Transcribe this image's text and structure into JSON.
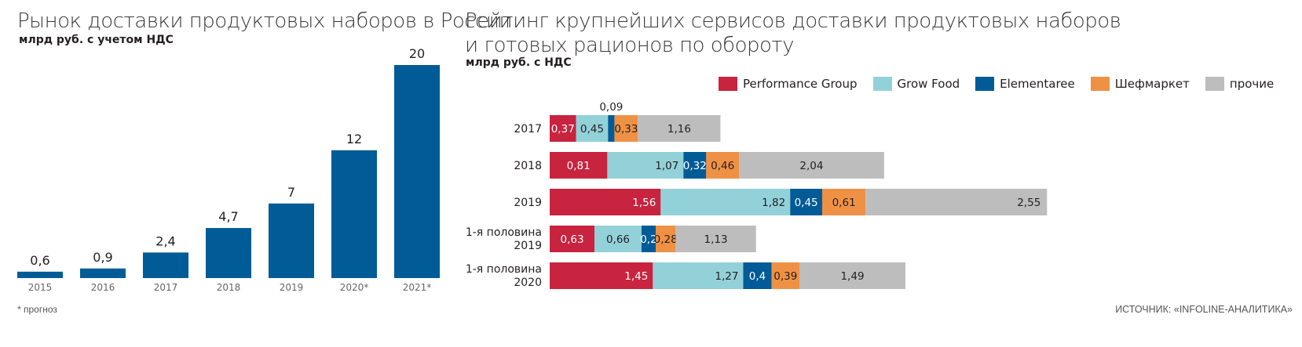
{
  "left": {
    "title": "Рынок доставки продуктовых наборов в России",
    "subtitle": "млрд руб. с учетом НДС",
    "footnote": "* прогноз"
  },
  "right": {
    "title_line1": "Рейтинг крупнейших сервисов доставки продуктовых наборов",
    "title_line2": "и готовых рационов по обороту",
    "subtitle": "млрд руб. с НДС",
    "source": "ИСТОЧНИК: «INFOLINE-АНАЛИТИКА»"
  },
  "colors": {
    "bar_blue": "#005b96",
    "performance": "#c8233f",
    "growfood": "#93d1d9",
    "elementaree": "#005b96",
    "shefmarket": "#ef9145",
    "other": "#bdbdbd"
  },
  "chart_data": [
    {
      "type": "bar",
      "title": "Рынок доставки продуктовых наборов в России",
      "ylabel": "млрд руб. с учетом НДС",
      "categories": [
        "2015",
        "2016",
        "2017",
        "2018",
        "2019",
        "2020*",
        "2021*"
      ],
      "values": [
        0.6,
        0.9,
        2.4,
        4.7,
        7,
        12,
        20
      ],
      "labels": [
        "0,6",
        "0,9",
        "2,4",
        "4,7",
        "7",
        "12",
        "20"
      ],
      "ylim": [
        0,
        20
      ]
    },
    {
      "type": "bar",
      "orientation": "horizontal",
      "stacked": true,
      "title": "Рейтинг крупнейших сервисов доставки продуктовых наборов и готовых рационов по обороту",
      "xlabel": "млрд руб. с НДС",
      "categories": [
        {
          "line1": "2017",
          "line2": ""
        },
        {
          "line1": "2018",
          "line2": ""
        },
        {
          "line1": "2019",
          "line2": ""
        },
        {
          "line1": "1-я половина",
          "line2": "2019"
        },
        {
          "line1": "1-я половина",
          "line2": "2020"
        }
      ],
      "series": [
        {
          "name": "Performance Group",
          "color_key": "performance",
          "values": [
            0.37,
            0.81,
            1.56,
            0.63,
            1.45
          ],
          "labels": [
            "0,37",
            "0,81",
            "1,56",
            "0,63",
            "1,45"
          ]
        },
        {
          "name": "Grow Food",
          "color_key": "growfood",
          "values": [
            0.45,
            1.07,
            1.82,
            0.66,
            1.27
          ],
          "labels": [
            "0,45",
            "1,07",
            "1,82",
            "0,66",
            "1,27"
          ]
        },
        {
          "name": "Elementaree",
          "color_key": "elementaree",
          "values": [
            0.09,
            0.32,
            0.45,
            0.2,
            0.4
          ],
          "labels": [
            "0,09",
            "0,32",
            "0,45",
            "0,2",
            "0,4"
          ]
        },
        {
          "name": "Шефмаркет",
          "color_key": "shefmarket",
          "values": [
            0.33,
            0.46,
            0.61,
            0.28,
            0.39
          ],
          "labels": [
            "0,33",
            "0,46",
            "0,61",
            "0,28",
            "0,39"
          ]
        },
        {
          "name": "прочие",
          "color_key": "other",
          "values": [
            1.16,
            2.04,
            2.55,
            1.13,
            1.49
          ],
          "labels": [
            "1,16",
            "2,04",
            "2,55",
            "1,13",
            "1,49"
          ]
        }
      ],
      "legend": "top"
    }
  ]
}
